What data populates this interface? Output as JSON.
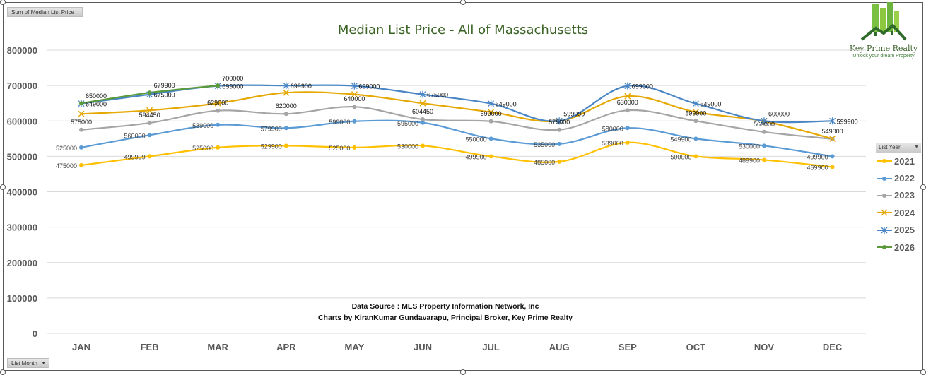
{
  "pivot_buttons": {
    "value_field": "Sum of Median List Price",
    "axis_field": "List Month",
    "legend_field": "List Year"
  },
  "logo": {
    "name": "Key Prime Realty",
    "tagline": "Unlock your dream Property"
  },
  "source": {
    "line1": "Data Source : MLS Property Information Network, Inc",
    "line2": "Charts by KiranKumar Gundavarapu, Principal Broker, Key Prime Realty"
  },
  "chart_data": {
    "type": "line",
    "title": "Median List Price - All of Massachusetts",
    "xlabel": "",
    "ylabel": "",
    "ylim": [
      0,
      800000
    ],
    "yticks": [
      0,
      100000,
      200000,
      300000,
      400000,
      500000,
      600000,
      700000,
      800000
    ],
    "grid": true,
    "smooth": true,
    "legend_position": "right",
    "categories": [
      "JAN",
      "FEB",
      "MAR",
      "APR",
      "MAY",
      "JUN",
      "JUL",
      "AUG",
      "SEP",
      "OCT",
      "NOV",
      "DEC"
    ],
    "series": [
      {
        "name": "2021",
        "color": "#FFC000",
        "marker": "circle",
        "show_labels": true,
        "label_side": "left",
        "values": [
          475000,
          499999,
          525000,
          529900,
          525000,
          530000,
          499900,
          485000,
          539000,
          500000,
          489900,
          469900
        ]
      },
      {
        "name": "2022",
        "color": "#5B9BD5",
        "marker": "circle",
        "show_labels": true,
        "label_side": "left",
        "values": [
          525000,
          560000,
          589000,
          579900,
          599000,
          595000,
          550000,
          535000,
          580000,
          549900,
          530000,
          499900
        ]
      },
      {
        "name": "2023",
        "color": "#A5A5A5",
        "marker": "circle",
        "show_labels": true,
        "label_side": "above",
        "values": [
          575000,
          594450,
          629000,
          620000,
          640000,
          604450,
          599000,
          575000,
          630000,
          599900,
          569000,
          549000
        ]
      },
      {
        "name": "2024",
        "color": "#E5A800",
        "marker": "x",
        "show_labels": false,
        "label_side": "none",
        "values": [
          619900,
          629900,
          649900,
          679900,
          675000,
          649900,
          625000,
          599900,
          669900,
          624900,
          599000,
          549900
        ]
      },
      {
        "name": "2025",
        "color": "#4A86C5",
        "marker": "star",
        "show_labels": true,
        "label_side": "right",
        "values": [
          649000,
          675000,
          699000,
          699900,
          699000,
          675000,
          649000,
          599999,
          699000,
          649000,
          600000,
          599900
        ]
      },
      {
        "name": "2026",
        "color": "#5A9A3A",
        "marker": "circle",
        "show_labels": true,
        "label_side": "right",
        "values": [
          650000,
          679900,
          700000,
          null,
          null,
          null,
          null,
          null,
          null,
          null,
          null,
          null
        ]
      }
    ]
  }
}
